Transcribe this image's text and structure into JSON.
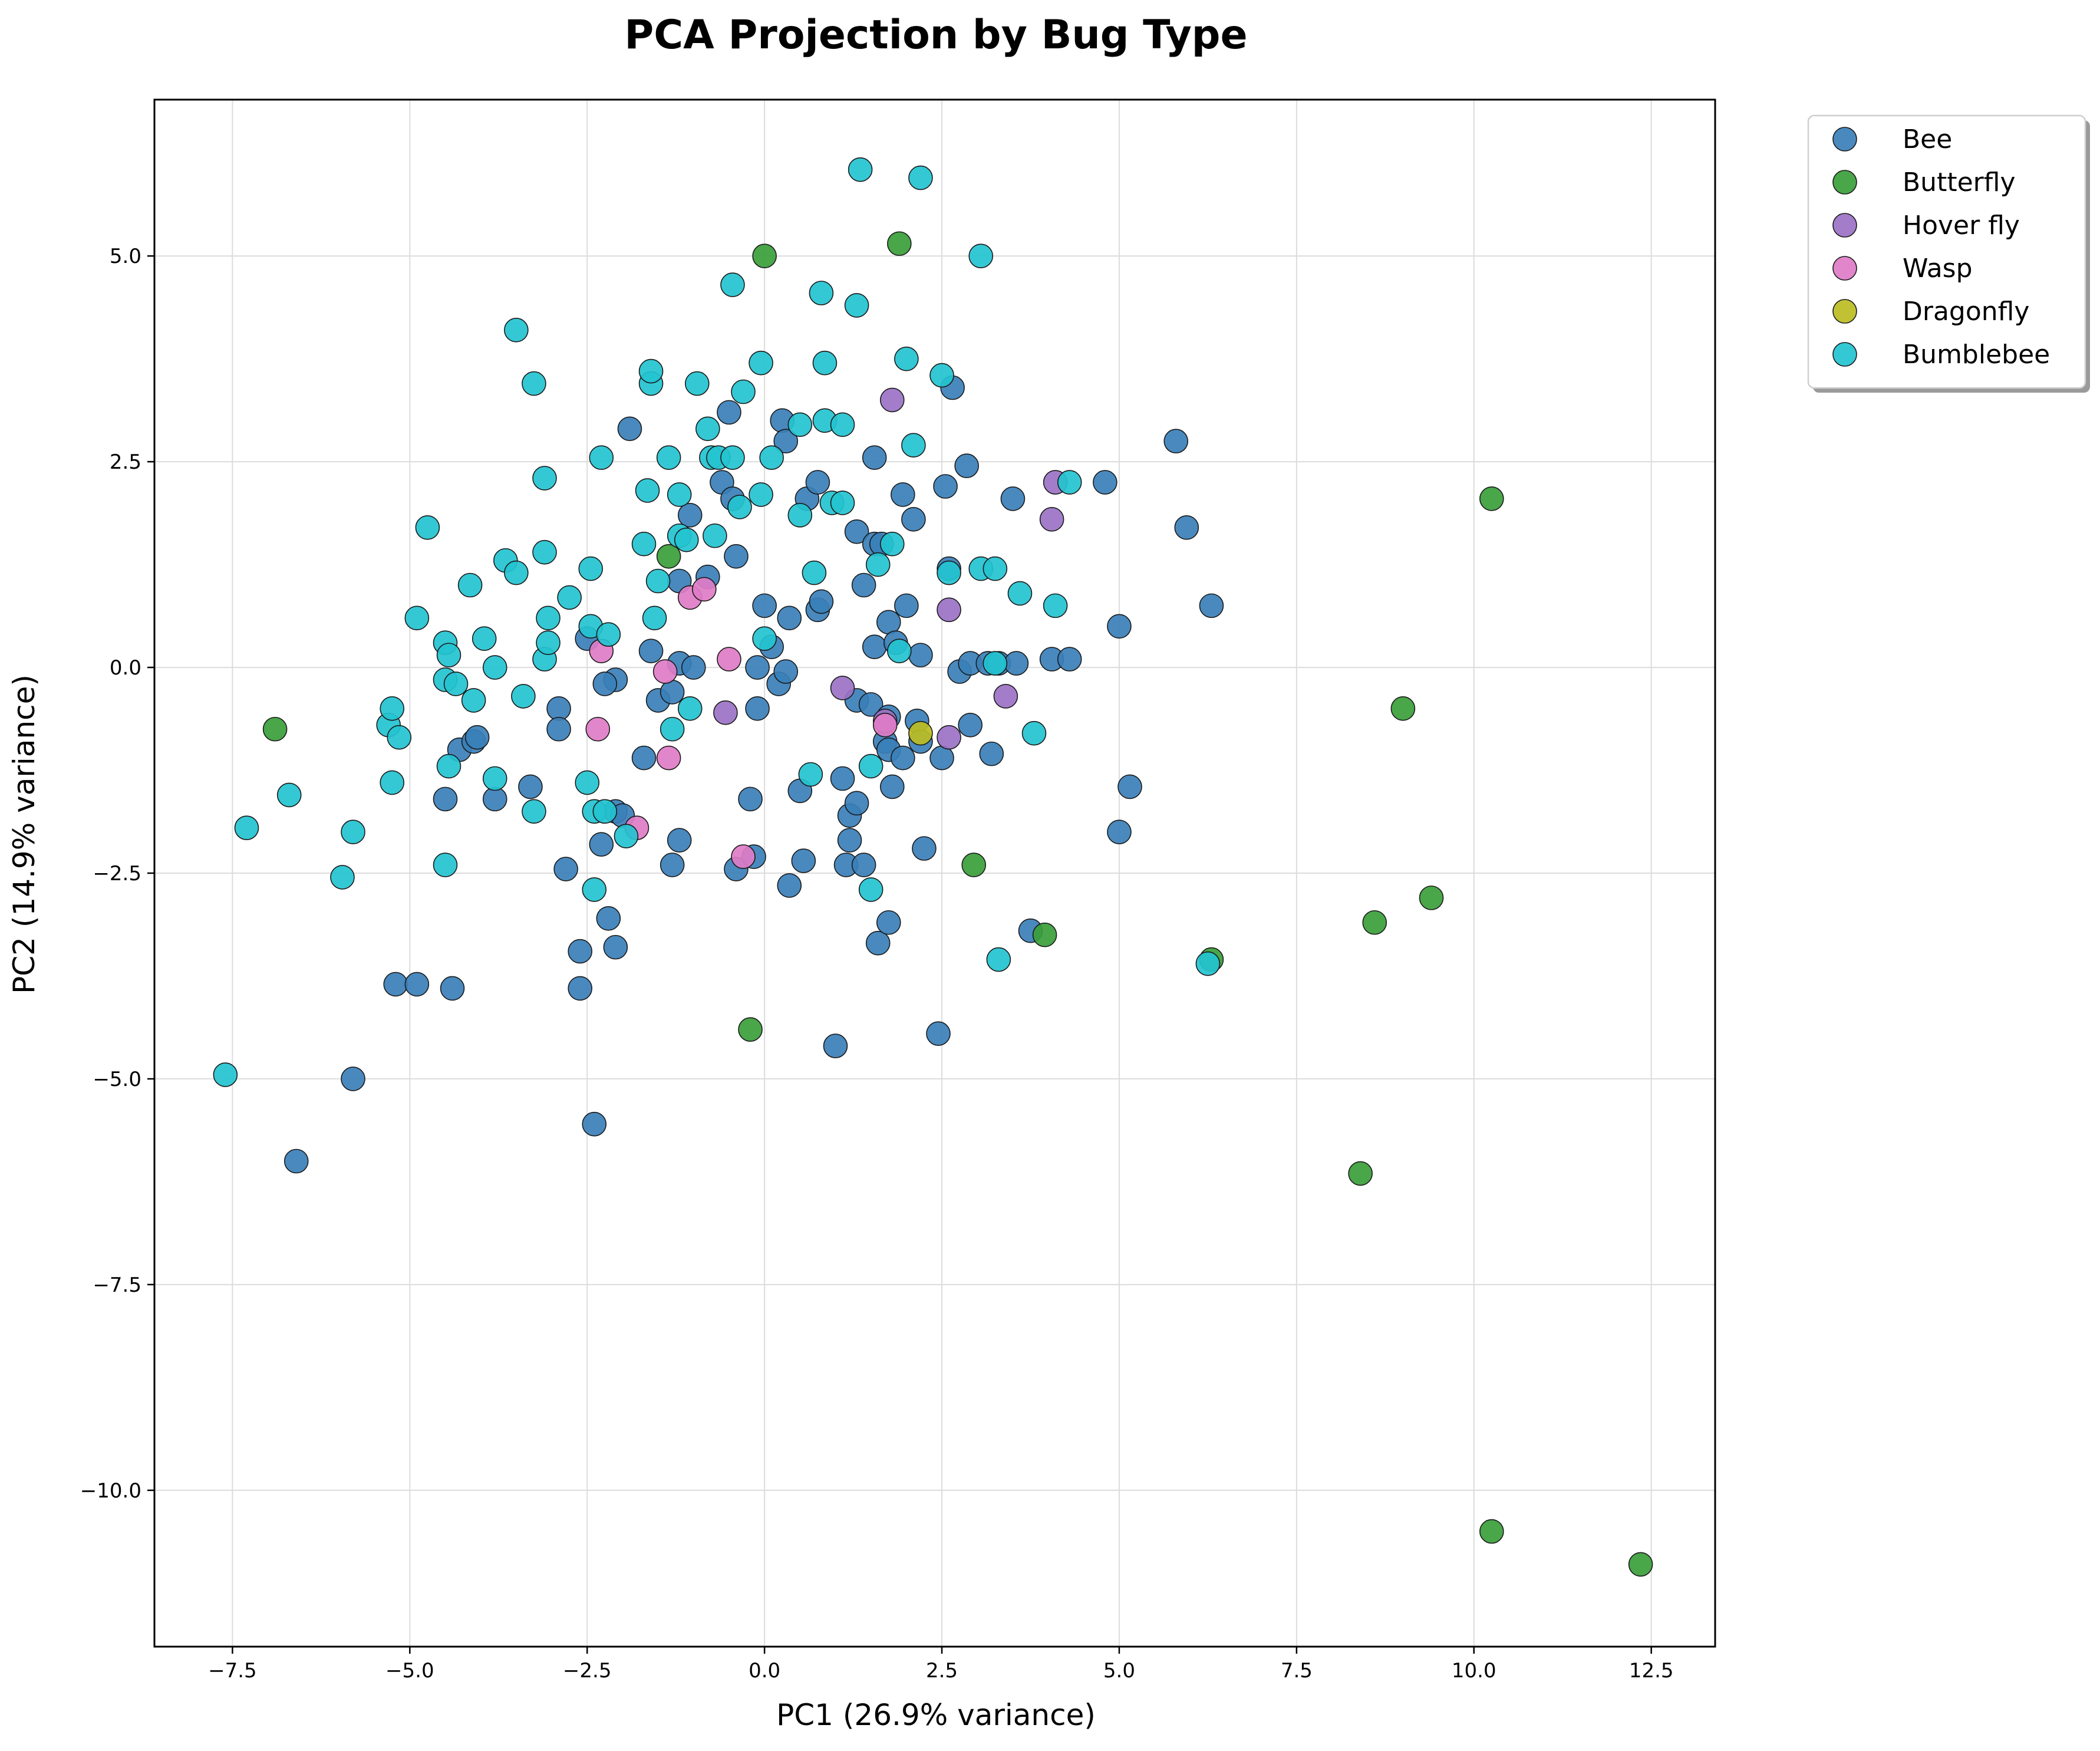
{
  "chart_data": {
    "type": "scatter",
    "title": "PCA Projection by Bug Type",
    "xlabel": "PC1 (26.9% variance)",
    "ylabel": "PC2 (14.9% variance)",
    "xlim": [
      -8.6,
      13.4
    ],
    "ylim": [
      -11.9,
      6.9
    ],
    "xticks": [
      -7.5,
      -5.0,
      -2.5,
      0.0,
      2.5,
      5.0,
      7.5,
      10.0,
      12.5
    ],
    "yticks": [
      -10.0,
      -7.5,
      -5.0,
      -2.5,
      0.0,
      2.5,
      5.0
    ],
    "xtick_labels": [
      "−7.5",
      "−5.0",
      "−2.5",
      "0.0",
      "2.5",
      "5.0",
      "7.5",
      "10.0",
      "12.5"
    ],
    "ytick_labels": [
      "−10.0",
      "−7.5",
      "−5.0",
      "−2.5",
      "0.0",
      "2.5",
      "5.0"
    ],
    "grid": true,
    "legend_position": "outside-top-right",
    "series": [
      {
        "name": "Bee",
        "color": "#3a7fb8",
        "points": [
          [
            -6.6,
            -6.0
          ],
          [
            -5.8,
            -5.0
          ],
          [
            -5.2,
            -3.85
          ],
          [
            -4.9,
            -3.85
          ],
          [
            -4.4,
            -3.9
          ],
          [
            -4.5,
            -1.6
          ],
          [
            -4.3,
            -1.0
          ],
          [
            -4.1,
            -0.9
          ],
          [
            -4.05,
            -0.85
          ],
          [
            -3.8,
            -1.6
          ],
          [
            -3.3,
            -1.45
          ],
          [
            -2.9,
            -0.5
          ],
          [
            -2.9,
            -0.75
          ],
          [
            -2.8,
            -2.45
          ],
          [
            -2.6,
            -3.45
          ],
          [
            -2.6,
            -3.9
          ],
          [
            -2.4,
            -5.55
          ],
          [
            -2.5,
            0.35
          ],
          [
            -2.3,
            -2.15
          ],
          [
            -2.2,
            -3.05
          ],
          [
            -2.1,
            -3.4
          ],
          [
            -2.1,
            -0.15
          ],
          [
            -2.25,
            -0.2
          ],
          [
            -2.1,
            -1.75
          ],
          [
            -2.0,
            -1.8
          ],
          [
            -1.9,
            2.9
          ],
          [
            -1.7,
            -1.1
          ],
          [
            -1.6,
            0.2
          ],
          [
            -1.5,
            -0.4
          ],
          [
            -1.3,
            -0.3
          ],
          [
            -1.3,
            -2.4
          ],
          [
            -1.2,
            -2.1
          ],
          [
            -1.2,
            0.05
          ],
          [
            -1.2,
            1.05
          ],
          [
            -1.05,
            1.85
          ],
          [
            -1.0,
            0.0
          ],
          [
            -0.8,
            1.1
          ],
          [
            -0.6,
            2.25
          ],
          [
            -0.5,
            3.1
          ],
          [
            -0.45,
            2.05
          ],
          [
            -0.4,
            1.35
          ],
          [
            -0.4,
            -2.45
          ],
          [
            -0.2,
            -1.6
          ],
          [
            -0.15,
            -2.3
          ],
          [
            -0.1,
            0.0
          ],
          [
            -0.1,
            -0.5
          ],
          [
            0.0,
            0.75
          ],
          [
            0.1,
            0.25
          ],
          [
            0.2,
            -0.2
          ],
          [
            0.25,
            3.0
          ],
          [
            0.3,
            -0.05
          ],
          [
            0.3,
            2.75
          ],
          [
            0.35,
            0.6
          ],
          [
            0.35,
            -2.65
          ],
          [
            0.5,
            -1.5
          ],
          [
            0.55,
            -2.35
          ],
          [
            0.6,
            2.05
          ],
          [
            0.75,
            2.25
          ],
          [
            0.75,
            0.7
          ],
          [
            0.8,
            0.8
          ],
          [
            1.0,
            -4.6
          ],
          [
            1.1,
            -1.35
          ],
          [
            1.15,
            -2.4
          ],
          [
            1.2,
            -2.1
          ],
          [
            1.2,
            -1.8
          ],
          [
            1.3,
            1.65
          ],
          [
            1.3,
            -0.4
          ],
          [
            1.3,
            -1.65
          ],
          [
            1.4,
            1.0
          ],
          [
            1.4,
            -2.4
          ],
          [
            1.5,
            -0.45
          ],
          [
            1.55,
            2.55
          ],
          [
            1.55,
            0.25
          ],
          [
            1.55,
            1.5
          ],
          [
            1.6,
            -3.35
          ],
          [
            1.65,
            1.5
          ],
          [
            1.7,
            -0.9
          ],
          [
            1.75,
            0.55
          ],
          [
            1.75,
            -0.6
          ],
          [
            1.75,
            -3.1
          ],
          [
            1.75,
            -1.0
          ],
          [
            1.8,
            -1.45
          ],
          [
            1.85,
            0.3
          ],
          [
            1.95,
            2.1
          ],
          [
            1.95,
            -1.1
          ],
          [
            2.0,
            0.75
          ],
          [
            2.1,
            1.8
          ],
          [
            2.15,
            -0.65
          ],
          [
            2.2,
            0.15
          ],
          [
            2.2,
            -0.9
          ],
          [
            2.25,
            -2.2
          ],
          [
            2.45,
            -4.45
          ],
          [
            2.5,
            -1.1
          ],
          [
            2.55,
            2.2
          ],
          [
            2.6,
            1.2
          ],
          [
            2.65,
            3.4
          ],
          [
            2.75,
            -0.05
          ],
          [
            2.85,
            2.45
          ],
          [
            2.9,
            0.05
          ],
          [
            2.9,
            -0.7
          ],
          [
            3.15,
            0.05
          ],
          [
            3.2,
            -1.05
          ],
          [
            3.3,
            0.05
          ],
          [
            3.5,
            2.05
          ],
          [
            3.55,
            0.05
          ],
          [
            3.75,
            -3.2
          ],
          [
            4.05,
            0.1
          ],
          [
            4.3,
            0.1
          ],
          [
            4.8,
            2.25
          ],
          [
            5.0,
            0.5
          ],
          [
            5.0,
            -2.0
          ],
          [
            5.15,
            -1.45
          ],
          [
            5.8,
            2.75
          ],
          [
            5.95,
            1.7
          ],
          [
            6.3,
            0.75
          ]
        ]
      },
      {
        "name": "Butterfly",
        "color": "#3a9e3a",
        "points": [
          [
            -6.9,
            -0.75
          ],
          [
            -1.35,
            1.35
          ],
          [
            0.0,
            5.0
          ],
          [
            -0.2,
            -4.4
          ],
          [
            1.9,
            5.15
          ],
          [
            2.95,
            -2.4
          ],
          [
            3.95,
            -3.25
          ],
          [
            6.3,
            -3.55
          ],
          [
            8.4,
            -6.15
          ],
          [
            8.6,
            -3.1
          ],
          [
            9.0,
            -0.5
          ],
          [
            9.4,
            -2.8
          ],
          [
            10.25,
            2.05
          ],
          [
            10.25,
            -10.5
          ],
          [
            12.35,
            -10.9
          ]
        ]
      },
      {
        "name": "Hover fly",
        "color": "#9b72c5",
        "points": [
          [
            -0.55,
            -0.55
          ],
          [
            1.1,
            -0.25
          ],
          [
            1.7,
            -0.65
          ],
          [
            1.8,
            3.25
          ],
          [
            2.6,
            0.7
          ],
          [
            2.6,
            -0.85
          ],
          [
            3.4,
            -0.35
          ],
          [
            4.05,
            1.8
          ],
          [
            4.1,
            2.25
          ]
        ]
      },
      {
        "name": "Wasp",
        "color": "#e07cc7",
        "points": [
          [
            -2.35,
            -0.75
          ],
          [
            -2.3,
            0.2
          ],
          [
            -1.8,
            -1.95
          ],
          [
            -1.4,
            -0.05
          ],
          [
            -1.35,
            -1.1
          ],
          [
            -1.05,
            0.85
          ],
          [
            -0.85,
            0.95
          ],
          [
            -0.5,
            0.1
          ],
          [
            -0.3,
            -2.3
          ],
          [
            1.7,
            -0.7
          ]
        ]
      },
      {
        "name": "Dragonfly",
        "color": "#bcbd22",
        "points": [
          [
            2.2,
            -0.8
          ]
        ]
      },
      {
        "name": "Bumblebee",
        "color": "#23c3d0",
        "points": [
          [
            -7.6,
            -4.95
          ],
          [
            -7.3,
            -1.95
          ],
          [
            -6.7,
            -1.55
          ],
          [
            -5.95,
            -2.55
          ],
          [
            -5.8,
            -2.0
          ],
          [
            -5.3,
            -0.7
          ],
          [
            -5.25,
            -0.5
          ],
          [
            -5.25,
            -1.4
          ],
          [
            -5.15,
            -0.85
          ],
          [
            -4.9,
            0.6
          ],
          [
            -4.75,
            1.7
          ],
          [
            -4.5,
            -2.4
          ],
          [
            -4.5,
            0.3
          ],
          [
            -4.5,
            -0.15
          ],
          [
            -4.45,
            -1.2
          ],
          [
            -4.45,
            0.15
          ],
          [
            -4.35,
            -0.2
          ],
          [
            -4.15,
            1.0
          ],
          [
            -4.1,
            -0.4
          ],
          [
            -3.95,
            0.35
          ],
          [
            -3.8,
            0.0
          ],
          [
            -3.8,
            -1.35
          ],
          [
            -3.65,
            1.3
          ],
          [
            -3.5,
            4.1
          ],
          [
            -3.5,
            1.15
          ],
          [
            -3.4,
            -0.35
          ],
          [
            -3.25,
            3.45
          ],
          [
            -3.25,
            -1.75
          ],
          [
            -3.1,
            2.3
          ],
          [
            -3.1,
            1.4
          ],
          [
            -3.1,
            0.1
          ],
          [
            -3.05,
            0.3
          ],
          [
            -3.05,
            0.6
          ],
          [
            -2.75,
            0.85
          ],
          [
            -2.5,
            -1.4
          ],
          [
            -2.45,
            1.2
          ],
          [
            -2.45,
            0.5
          ],
          [
            -2.4,
            -2.7
          ],
          [
            -2.4,
            -1.75
          ],
          [
            -2.3,
            2.55
          ],
          [
            -2.25,
            -1.75
          ],
          [
            -2.2,
            0.4
          ],
          [
            -1.95,
            -2.05
          ],
          [
            -1.7,
            1.5
          ],
          [
            -1.65,
            2.15
          ],
          [
            -1.6,
            3.45
          ],
          [
            -1.6,
            3.6
          ],
          [
            -1.55,
            0.6
          ],
          [
            -1.5,
            1.05
          ],
          [
            -1.35,
            2.55
          ],
          [
            -1.3,
            -0.75
          ],
          [
            -1.2,
            1.6
          ],
          [
            -1.2,
            2.1
          ],
          [
            -1.1,
            1.55
          ],
          [
            -1.05,
            -0.5
          ],
          [
            -0.95,
            3.45
          ],
          [
            -0.8,
            2.9
          ],
          [
            -0.75,
            2.55
          ],
          [
            -0.7,
            1.6
          ],
          [
            -0.65,
            2.55
          ],
          [
            -0.45,
            4.65
          ],
          [
            -0.45,
            2.55
          ],
          [
            -0.35,
            1.95
          ],
          [
            -0.3,
            3.35
          ],
          [
            -0.05,
            3.7
          ],
          [
            -0.05,
            2.1
          ],
          [
            0.0,
            0.35
          ],
          [
            0.1,
            2.55
          ],
          [
            0.5,
            1.85
          ],
          [
            0.5,
            2.95
          ],
          [
            0.65,
            -1.3
          ],
          [
            0.7,
            1.15
          ],
          [
            0.8,
            4.55
          ],
          [
            0.85,
            3.7
          ],
          [
            0.85,
            3.0
          ],
          [
            0.95,
            2.0
          ],
          [
            1.1,
            2.95
          ],
          [
            1.1,
            2.0
          ],
          [
            1.35,
            6.05
          ],
          [
            1.3,
            4.4
          ],
          [
            1.5,
            -1.2
          ],
          [
            1.5,
            -2.7
          ],
          [
            1.6,
            1.25
          ],
          [
            1.8,
            1.5
          ],
          [
            1.9,
            0.2
          ],
          [
            2.0,
            3.75
          ],
          [
            2.1,
            2.7
          ],
          [
            2.2,
            5.95
          ],
          [
            2.5,
            3.55
          ],
          [
            2.6,
            1.15
          ],
          [
            3.05,
            5.0
          ],
          [
            3.05,
            1.2
          ],
          [
            3.25,
            1.2
          ],
          [
            3.25,
            0.05
          ],
          [
            3.3,
            -3.55
          ],
          [
            3.6,
            0.9
          ],
          [
            3.8,
            -0.8
          ],
          [
            4.1,
            0.75
          ],
          [
            4.3,
            2.25
          ],
          [
            6.25,
            -3.6
          ]
        ]
      }
    ]
  }
}
